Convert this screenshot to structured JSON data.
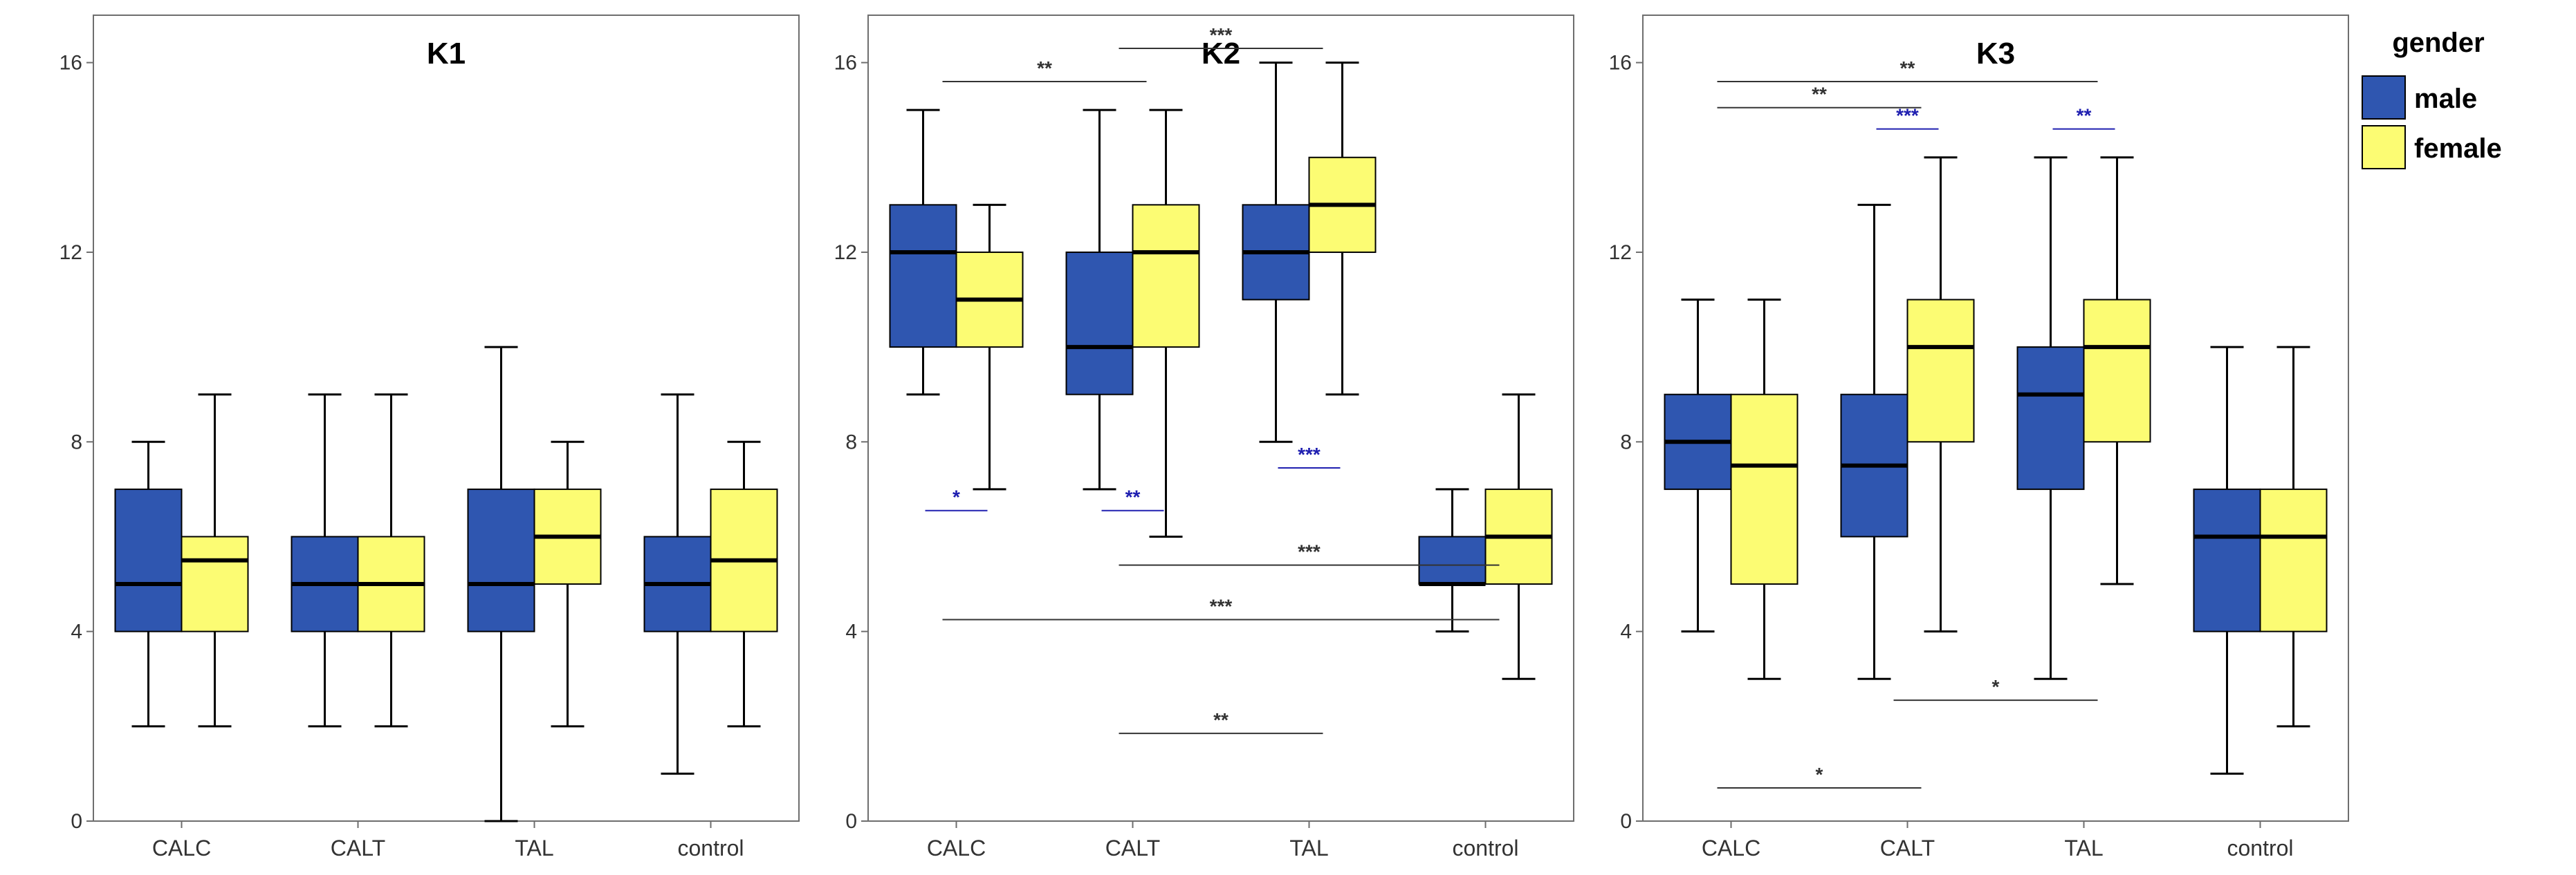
{
  "chart_data": {
    "type": "box",
    "categories": [
      "CALC",
      "CALT",
      "TAL",
      "control"
    ],
    "ylim": [
      0,
      17
    ],
    "yticks": [
      "0",
      "4",
      "8",
      "12",
      "16"
    ],
    "legend": {
      "title": "gender",
      "placement": "top-right",
      "entries": [
        {
          "name": "male",
          "color": "#2f56b0"
        },
        {
          "name": "female",
          "color": "#fcfc73"
        }
      ]
    },
    "panels": [
      {
        "title": "K1",
        "groups": [
          {
            "category": "CALC",
            "gender": "male",
            "whisker_low": 2,
            "q1": 4,
            "median": 5,
            "q3": 7,
            "whisker_high": 8
          },
          {
            "category": "CALC",
            "gender": "female",
            "whisker_low": 2,
            "q1": 4,
            "median": 5.5,
            "q3": 6,
            "whisker_high": 9
          },
          {
            "category": "CALT",
            "gender": "male",
            "whisker_low": 2,
            "q1": 4,
            "median": 5,
            "q3": 6,
            "whisker_high": 9
          },
          {
            "category": "CALT",
            "gender": "female",
            "whisker_low": 2,
            "q1": 4,
            "median": 5,
            "q3": 6,
            "whisker_high": 9
          },
          {
            "category": "TAL",
            "gender": "male",
            "whisker_low": 0,
            "q1": 4,
            "median": 5,
            "q3": 7,
            "whisker_high": 10
          },
          {
            "category": "TAL",
            "gender": "female",
            "whisker_low": 2,
            "q1": 5,
            "median": 6,
            "q3": 7,
            "whisker_high": 8
          },
          {
            "category": "control",
            "gender": "male",
            "whisker_low": 1,
            "q1": 4,
            "median": 5,
            "q3": 6,
            "whisker_high": 9
          },
          {
            "category": "control",
            "gender": "female",
            "whisker_low": 2,
            "q1": 4,
            "median": 5.5,
            "q3": 7,
            "whisker_high": 8
          }
        ],
        "annotations": []
      },
      {
        "title": "K2",
        "groups": [
          {
            "category": "CALC",
            "gender": "male",
            "whisker_low": 9,
            "q1": 10,
            "median": 12,
            "q3": 13,
            "whisker_high": 15
          },
          {
            "category": "CALC",
            "gender": "female",
            "whisker_low": 7,
            "q1": 10,
            "median": 11,
            "q3": 12,
            "whisker_high": 13
          },
          {
            "category": "CALT",
            "gender": "male",
            "whisker_low": 7,
            "q1": 9,
            "median": 10,
            "q3": 12,
            "whisker_high": 15
          },
          {
            "category": "CALT",
            "gender": "female",
            "whisker_low": 6,
            "q1": 10,
            "median": 12,
            "q3": 13,
            "whisker_high": 15
          },
          {
            "category": "TAL",
            "gender": "male",
            "whisker_low": 8,
            "q1": 11,
            "median": 12,
            "q3": 13,
            "whisker_high": 16
          },
          {
            "category": "TAL",
            "gender": "female",
            "whisker_low": 9,
            "q1": 12,
            "median": 13,
            "q3": 14,
            "whisker_high": 16
          },
          {
            "category": "control",
            "gender": "male",
            "whisker_low": 4,
            "q1": 5,
            "median": 5,
            "q3": 6,
            "whisker_high": 7
          },
          {
            "category": "control",
            "gender": "female",
            "whisker_low": 3,
            "q1": 5,
            "median": 6,
            "q3": 7,
            "whisker_high": 9
          }
        ],
        "annotations": [
          {
            "label": "**",
            "from": "CALC",
            "to": "CALT",
            "y": 15.6,
            "color": "#333333"
          },
          {
            "label": "***",
            "from": "CALT",
            "to": "TAL",
            "y": 16.3,
            "color": "#333333"
          },
          {
            "label": "*",
            "from": "CALC",
            "to": "CALC",
            "y": 6.55,
            "color": "#1f1fb0"
          },
          {
            "label": "**",
            "from": "CALT",
            "to": "CALT",
            "y": 6.55,
            "color": "#1f1fb0"
          },
          {
            "label": "***",
            "from": "TAL",
            "to": "TAL",
            "y": 7.45,
            "color": "#1f1fb0"
          },
          {
            "label": "***",
            "from": "CALT",
            "to": "control",
            "y": 5.4,
            "color": "#333333"
          },
          {
            "label": "***",
            "from": "CALC",
            "to": "control",
            "y": 4.25,
            "color": "#333333"
          },
          {
            "label": "**",
            "from": "CALT",
            "to": "TAL",
            "y": 1.85,
            "color": "#333333"
          }
        ]
      },
      {
        "title": "K3",
        "groups": [
          {
            "category": "CALC",
            "gender": "male",
            "whisker_low": 4,
            "q1": 7,
            "median": 8,
            "q3": 9,
            "whisker_high": 11
          },
          {
            "category": "CALC",
            "gender": "female",
            "whisker_low": 3,
            "q1": 5,
            "median": 7.5,
            "q3": 9,
            "whisker_high": 11
          },
          {
            "category": "CALT",
            "gender": "male",
            "whisker_low": 3,
            "q1": 6,
            "median": 7.5,
            "q3": 9,
            "whisker_high": 13
          },
          {
            "category": "CALT",
            "gender": "female",
            "whisker_low": 4,
            "q1": 8,
            "median": 10,
            "q3": 11,
            "whisker_high": 14
          },
          {
            "category": "TAL",
            "gender": "male",
            "whisker_low": 3,
            "q1": 7,
            "median": 9,
            "q3": 10,
            "whisker_high": 14
          },
          {
            "category": "TAL",
            "gender": "female",
            "whisker_low": 5,
            "q1": 8,
            "median": 10,
            "q3": 11,
            "whisker_high": 14
          },
          {
            "category": "control",
            "gender": "male",
            "whisker_low": 1,
            "q1": 4,
            "median": 6,
            "q3": 7,
            "whisker_high": 10
          },
          {
            "category": "control",
            "gender": "female",
            "whisker_low": 2,
            "q1": 4,
            "median": 6,
            "q3": 7,
            "whisker_high": 10
          }
        ],
        "annotations": [
          {
            "label": "**",
            "from": "CALC",
            "to": "TAL",
            "y": 15.6,
            "color": "#333333"
          },
          {
            "label": "**",
            "from": "CALC",
            "to": "CALT",
            "y": 15.05,
            "color": "#333333"
          },
          {
            "label": "***",
            "from": "CALT",
            "to": "CALT",
            "y": 14.6,
            "color": "#1f1fb0"
          },
          {
            "label": "**",
            "from": "TAL",
            "to": "TAL",
            "y": 14.6,
            "color": "#1f1fb0"
          },
          {
            "label": "*",
            "from": "CALT",
            "to": "TAL",
            "y": 2.55,
            "color": "#333333"
          },
          {
            "label": "*",
            "from": "CALC",
            "to": "CALT",
            "y": 0.7,
            "color": "#333333"
          }
        ]
      }
    ]
  }
}
